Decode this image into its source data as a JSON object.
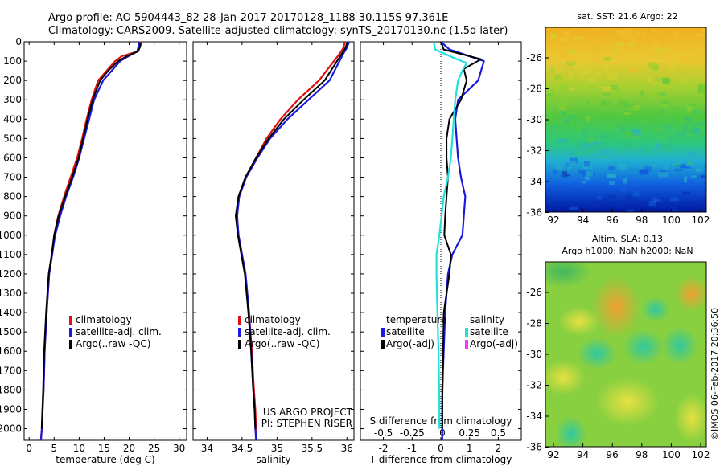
{
  "header": {
    "line1": "Argo profile: AO 5904443_82 28-Jan-2017 20170128_1188 30.115S 97.361E",
    "line2": "Climatology: CARS2009. Satellite-adjusted climatology: synTS_20170130.nc (1.5d later)"
  },
  "credit": "©IMOS 06-Feb-2017 20:36:50",
  "colors": {
    "climatology": "#e01010",
    "satellite": "#1a1adc",
    "argo": "#000000",
    "salinity_satellite": "#20e0e0",
    "salinity_argo": "#ff30ff"
  },
  "chart_data": [
    {
      "id": "temperature",
      "type": "line",
      "xlabel": "temperature (deg C)",
      "xlim": [
        -1,
        31.5
      ],
      "ylim": [
        2060,
        0
      ],
      "yticks": [
        0,
        100,
        200,
        300,
        400,
        500,
        600,
        700,
        800,
        900,
        1000,
        1100,
        1200,
        1300,
        1400,
        1500,
        1600,
        1700,
        1800,
        1900,
        2000
      ],
      "xticks": [
        0,
        5,
        10,
        15,
        20,
        25,
        30
      ],
      "legend": [
        "climatology",
        "satellite-adj. clim.",
        "Argo(..raw -QC)"
      ],
      "series": [
        {
          "name": "climatology",
          "color": "#e01010",
          "x": [
            22.4,
            22.2,
            21.7,
            18.5,
            17.2,
            15.5,
            13.8,
            12.5,
            11.5,
            10.6,
            9.6,
            8.3,
            7.0,
            5.8,
            5.0,
            4.6,
            4.0,
            3.5,
            3.1,
            2.9,
            2.7,
            2.55,
            2.45,
            2.4,
            2.35
          ],
          "y": [
            0,
            25,
            50,
            75,
            100,
            150,
            200,
            300,
            400,
            500,
            600,
            700,
            800,
            900,
            1000,
            1100,
            1200,
            1400,
            1600,
            1800,
            1900,
            2000,
            2030,
            2050,
            2060
          ]
        },
        {
          "name": "satellite-adj. clim.",
          "color": "#1a1adc",
          "x": [
            22.0,
            21.9,
            21.6,
            19.8,
            18.2,
            16.5,
            14.8,
            13.0,
            12.0,
            11.0,
            10.0,
            8.8,
            7.4,
            6.2,
            5.2,
            4.6,
            4.0,
            3.5,
            3.1,
            2.9,
            2.7,
            2.55,
            2.45,
            2.4,
            2.35
          ],
          "y": [
            0,
            25,
            50,
            75,
            100,
            150,
            200,
            300,
            400,
            500,
            600,
            700,
            800,
            900,
            1000,
            1100,
            1200,
            1400,
            1600,
            1800,
            1900,
            2000,
            2030,
            2050,
            2060
          ]
        },
        {
          "name": "Argo(..raw -QC)",
          "color": "#000000",
          "x": [
            22.3,
            22.2,
            21.8,
            19.5,
            17.8,
            15.8,
            14.2,
            12.7,
            11.7,
            10.8,
            9.9,
            8.6,
            7.2,
            5.9,
            5.0,
            4.5,
            3.9,
            3.4,
            3.0,
            2.8,
            2.65,
            2.5
          ],
          "y": [
            5,
            25,
            50,
            75,
            100,
            150,
            200,
            300,
            400,
            500,
            600,
            700,
            800,
            900,
            1000,
            1100,
            1200,
            1400,
            1600,
            1800,
            1900,
            2000
          ]
        }
      ]
    },
    {
      "id": "salinity",
      "type": "line",
      "xlabel": "salinity",
      "xlim": [
        33.8,
        36.1
      ],
      "ylim": [
        2060,
        0
      ],
      "xticks": [
        34,
        34.5,
        35,
        35.5,
        36
      ],
      "legend": [
        "climatology",
        "satellite-adj. clim.",
        "Argo(..raw -QC)"
      ],
      "annotation": [
        "US ARGO PROJECT",
        "PI: STEPHEN RISER"
      ],
      "series": [
        {
          "name": "climatology",
          "color": "#e01010",
          "x": [
            35.97,
            35.95,
            35.9,
            35.6,
            35.3,
            35.05,
            34.85,
            34.7,
            34.55,
            34.45,
            34.42,
            34.45,
            34.5,
            34.55,
            34.6,
            34.64,
            34.67,
            34.69,
            34.7,
            34.71
          ],
          "y": [
            0,
            30,
            60,
            200,
            300,
            400,
            500,
            600,
            700,
            800,
            900,
            1000,
            1100,
            1200,
            1400,
            1600,
            1800,
            1900,
            2000,
            2060
          ]
        },
        {
          "name": "satellite-adj. clim.",
          "color": "#1a1adc",
          "x": [
            36.03,
            36.0,
            35.95,
            35.75,
            35.45,
            35.15,
            34.9,
            34.72,
            34.56,
            34.46,
            34.43,
            34.45,
            34.5,
            34.55,
            34.6,
            34.63,
            34.66,
            34.68,
            34.69,
            34.7
          ],
          "y": [
            0,
            30,
            60,
            200,
            300,
            400,
            500,
            600,
            700,
            800,
            900,
            1000,
            1100,
            1200,
            1400,
            1600,
            1800,
            1900,
            2000,
            2060
          ]
        },
        {
          "name": "Argo(..raw -QC)",
          "color": "#000000",
          "x": [
            36.0,
            35.98,
            35.93,
            35.68,
            35.38,
            35.1,
            34.88,
            34.7,
            34.55,
            34.45,
            34.41,
            34.44,
            34.49,
            34.54,
            34.59,
            34.63,
            34.66,
            34.68,
            34.69
          ],
          "y": [
            5,
            30,
            60,
            200,
            300,
            400,
            500,
            600,
            700,
            800,
            900,
            1000,
            1100,
            1200,
            1400,
            1600,
            1800,
            1900,
            2000
          ]
        }
      ]
    },
    {
      "id": "differences",
      "type": "line",
      "xlabel": "T difference from climatology",
      "xlabel_top": "S difference from climatology",
      "xlim": [
        -2.8,
        2.8
      ],
      "ylim": [
        2060,
        0
      ],
      "xticks": [
        -2,
        -1,
        0,
        1,
        2
      ],
      "xticks_top": [
        "-0.5",
        "-0.25",
        "0",
        "0.25",
        "0.5"
      ],
      "legend_groups": [
        {
          "title": "temperature",
          "items": [
            "satellite",
            "Argo(-adj)"
          ]
        },
        {
          "title": "salinity",
          "items": [
            "satellite",
            "Argo(-adj)"
          ]
        }
      ],
      "series": [
        {
          "name": "temperature satellite",
          "color": "#1a1adc",
          "x": [
            0,
            0.3,
            1.5,
            1.4,
            1.3,
            0.6,
            0.5,
            0.55,
            0.6,
            0.7,
            0.85,
            0.8,
            0.75,
            0.4,
            0.25,
            0.15,
            0.1,
            0.05,
            0.05,
            0.05,
            0.05
          ],
          "y": [
            0,
            40,
            100,
            150,
            200,
            300,
            400,
            500,
            600,
            700,
            800,
            900,
            1000,
            1100,
            1200,
            1400,
            1600,
            1800,
            1900,
            2000,
            2060
          ]
        },
        {
          "name": "temperature Argo(-adj)",
          "color": "#000000",
          "x": [
            0,
            0.1,
            1.4,
            0.8,
            0.9,
            0.7,
            0.3,
            0.2,
            0.2,
            0.25,
            0.2,
            0.15,
            0.12,
            0.35,
            0.3,
            0.1,
            0.08,
            0.06,
            0.05,
            0.05
          ],
          "y": [
            0,
            40,
            90,
            140,
            200,
            300,
            400,
            500,
            600,
            700,
            800,
            900,
            1000,
            1100,
            1200,
            1400,
            1600,
            1800,
            1900,
            2000
          ]
        },
        {
          "name": "salinity satellite",
          "color": "#20e0e0",
          "x": [
            -0.25,
            -0.2,
            0.4,
            0.9,
            0.75,
            0.6,
            0.5,
            0.45,
            0.4,
            0.35,
            0.25,
            0.1,
            -0.05,
            -0.15,
            -0.15,
            -0.12,
            -0.08,
            -0.06,
            -0.05,
            -0.05
          ],
          "y": [
            0,
            40,
            80,
            110,
            150,
            200,
            300,
            400,
            500,
            600,
            700,
            800,
            1000,
            1100,
            1200,
            1400,
            1600,
            1800,
            1900,
            2000
          ]
        }
      ]
    }
  ],
  "maps": [
    {
      "id": "sst",
      "title": "sat. SST: 21.6 Argo: 22",
      "xticks": [
        "92",
        "94",
        "96",
        "98",
        "100",
        "102"
      ],
      "yticks": [
        "-26",
        "-28",
        "-30",
        "-32",
        "-34",
        "-36"
      ]
    },
    {
      "id": "sla",
      "title_line1": "Altim. SLA: 0.13",
      "title_line2": "Argo h1000: NaN h2000: NaN",
      "xticks": [
        "92",
        "94",
        "96",
        "98",
        "100",
        "102"
      ],
      "yticks": [
        "-26",
        "-28",
        "-30",
        "-32",
        "-34",
        "-36"
      ]
    }
  ]
}
